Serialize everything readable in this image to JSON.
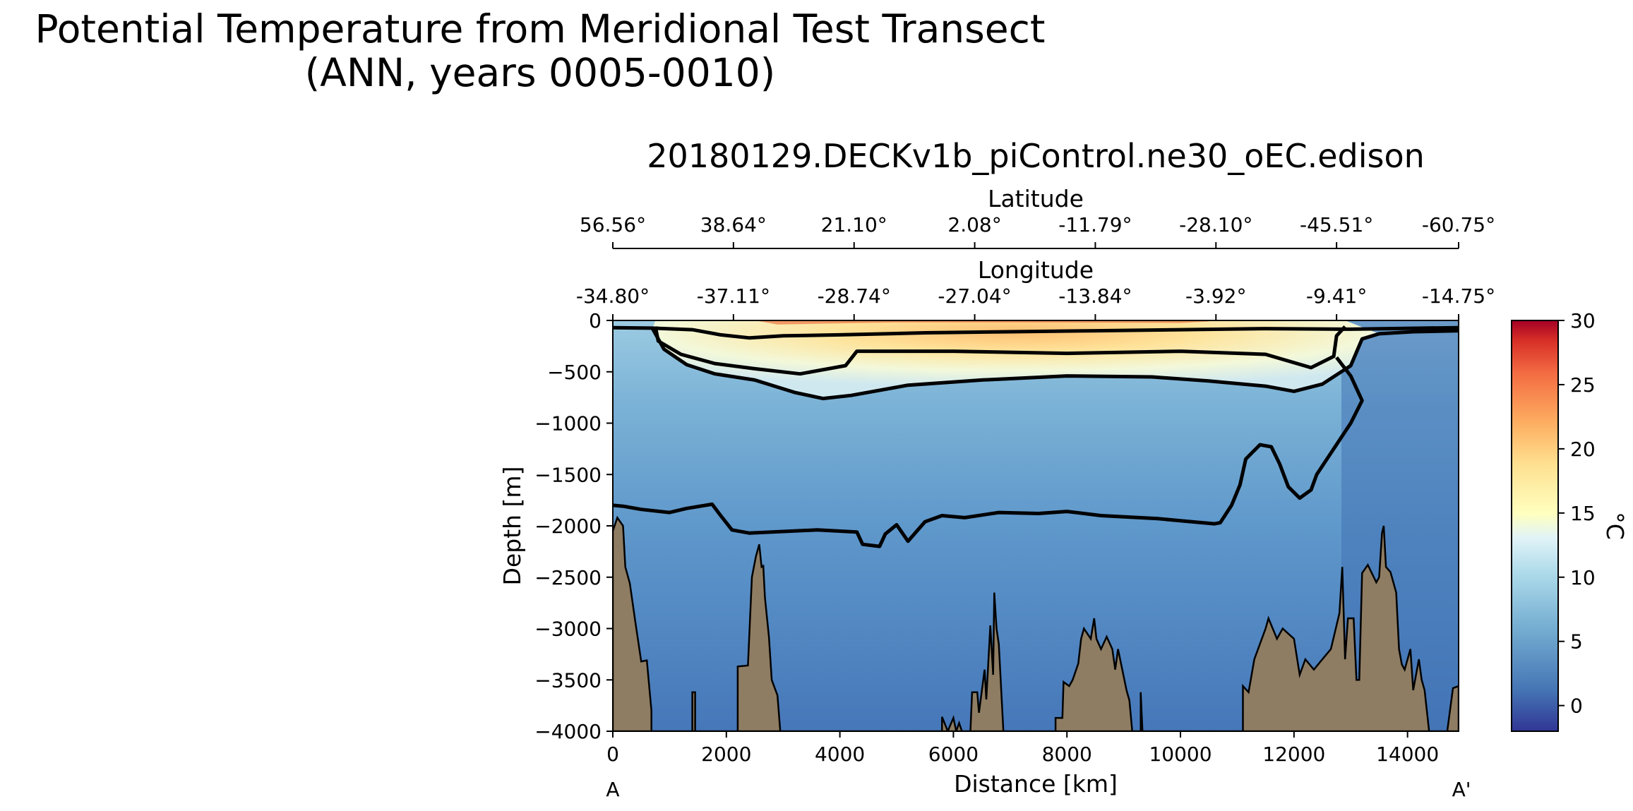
{
  "figure": {
    "suptitle_line1": "Potential Temperature from Meridional Test Transect",
    "suptitle_line2": "(ANN, years 0005-0010)",
    "plot_title": "20180129.DECKv1b_piControl.ne30_oEC.edison",
    "colors": {
      "deep": "#3f6eb0",
      "mid": "#7fb6d8",
      "light": "#e7f3f5",
      "warm": "#fddf8c",
      "hot": "#ef7148",
      "bathymetry": "#8e7d63",
      "contour": "#000000"
    }
  },
  "chart_data": {
    "type": "heatmap",
    "variable": "Potential Temperature",
    "xlabel": "Distance [km]",
    "ylabel": "Depth [m]",
    "xlim": [
      0,
      14900
    ],
    "ylim": [
      -4000,
      0
    ],
    "xticks": [
      0,
      2000,
      4000,
      6000,
      8000,
      10000,
      12000,
      14000
    ],
    "xtick_labels": [
      "0",
      "2000",
      "4000",
      "6000",
      "8000",
      "10000",
      "12000",
      "14000"
    ],
    "yticks": [
      0,
      -500,
      -1000,
      -1500,
      -2000,
      -2500,
      -3000,
      -3500,
      -4000
    ],
    "ytick_labels": [
      "0",
      "−500",
      "−1000",
      "−1500",
      "−2000",
      "−2500",
      "−3000",
      "−3500",
      "−4000"
    ],
    "section_start_label": "A",
    "section_end_label": "A'",
    "top_axes": [
      {
        "label": "Latitude",
        "tick_positions_km": [
          0,
          2125,
          4250,
          6375,
          8500,
          10625,
          12750,
          14900
        ],
        "tick_labels": [
          "56.56°",
          "38.64°",
          "21.10°",
          "2.08°",
          "-11.79°",
          "-28.10°",
          "-45.51°",
          "-60.75°"
        ]
      },
      {
        "label": "Longitude",
        "tick_positions_km": [
          0,
          2125,
          4250,
          6375,
          8500,
          10625,
          12750,
          14900
        ],
        "tick_labels": [
          "-34.80°",
          "-37.11°",
          "-28.74°",
          "-27.04°",
          "-13.84°",
          "-3.92°",
          "-9.41°",
          "-14.75°"
        ]
      }
    ],
    "colorbar": {
      "label": "°C",
      "vmin": -2,
      "vmax": 30,
      "ticks": [
        0,
        5,
        10,
        15,
        20,
        25,
        30
      ],
      "tick_labels": [
        "0",
        "5",
        "10",
        "15",
        "20",
        "25",
        "30"
      ]
    },
    "contour_lines": [
      {
        "name": "contour-near-surface",
        "points": [
          [
            0,
            -70
          ],
          [
            700,
            -75
          ],
          [
            1400,
            -90
          ],
          [
            1900,
            -140
          ],
          [
            2400,
            -170
          ],
          [
            3000,
            -150
          ],
          [
            4000,
            -140
          ],
          [
            5500,
            -120
          ],
          [
            7000,
            -110
          ],
          [
            8500,
            -100
          ],
          [
            10000,
            -90
          ],
          [
            11500,
            -80
          ],
          [
            13000,
            -85
          ],
          [
            14900,
            -70
          ]
        ]
      },
      {
        "name": "contour-thermocline-upper",
        "points": [
          [
            750,
            -60
          ],
          [
            800,
            -200
          ],
          [
            1200,
            -330
          ],
          [
            1800,
            -420
          ],
          [
            2500,
            -470
          ],
          [
            3300,
            -520
          ],
          [
            4100,
            -440
          ],
          [
            4300,
            -300
          ],
          [
            6000,
            -300
          ],
          [
            8000,
            -320
          ],
          [
            10000,
            -300
          ],
          [
            11500,
            -330
          ],
          [
            12300,
            -460
          ],
          [
            12700,
            -350
          ],
          [
            12750,
            -150
          ],
          [
            12900,
            -60
          ]
        ]
      },
      {
        "name": "contour-thermocline-lower",
        "points": [
          [
            700,
            -80
          ],
          [
            900,
            -280
          ],
          [
            1300,
            -430
          ],
          [
            1800,
            -520
          ],
          [
            2500,
            -580
          ],
          [
            3200,
            -700
          ],
          [
            3700,
            -760
          ],
          [
            4200,
            -730
          ],
          [
            5200,
            -630
          ],
          [
            6500,
            -580
          ],
          [
            8000,
            -540
          ],
          [
            9500,
            -550
          ],
          [
            10500,
            -590
          ],
          [
            11500,
            -640
          ],
          [
            12000,
            -690
          ],
          [
            12500,
            -620
          ],
          [
            13000,
            -440
          ],
          [
            13200,
            -180
          ],
          [
            13500,
            -130
          ],
          [
            14100,
            -110
          ],
          [
            14900,
            -100
          ]
        ]
      },
      {
        "name": "contour-intermediate",
        "points": [
          [
            12750,
            -360
          ],
          [
            13000,
            -540
          ],
          [
            13200,
            -780
          ],
          [
            13000,
            -1000
          ],
          [
            12700,
            -1250
          ],
          [
            12400,
            -1500
          ],
          [
            12300,
            -1650
          ],
          [
            12100,
            -1730
          ],
          [
            11900,
            -1620
          ],
          [
            11750,
            -1400
          ],
          [
            11600,
            -1230
          ],
          [
            11400,
            -1210
          ],
          [
            11150,
            -1350
          ],
          [
            11050,
            -1600
          ],
          [
            10900,
            -1800
          ],
          [
            10700,
            -1970
          ],
          [
            10600,
            -1980
          ],
          [
            10000,
            -1950
          ],
          [
            9600,
            -1930
          ],
          [
            8600,
            -1900
          ],
          [
            8000,
            -1860
          ],
          [
            7500,
            -1880
          ],
          [
            6800,
            -1870
          ],
          [
            6200,
            -1920
          ],
          [
            5800,
            -1900
          ],
          [
            5500,
            -1960
          ],
          [
            5200,
            -2150
          ],
          [
            5000,
            -1990
          ],
          [
            4800,
            -2080
          ],
          [
            4700,
            -2200
          ],
          [
            4400,
            -2180
          ],
          [
            4300,
            -2060
          ],
          [
            3600,
            -2040
          ],
          [
            2400,
            -2070
          ],
          [
            2100,
            -2040
          ],
          [
            1900,
            -1900
          ],
          [
            1750,
            -1790
          ],
          [
            1300,
            -1830
          ],
          [
            1000,
            -1870
          ],
          [
            500,
            -1840
          ],
          [
            200,
            -1810
          ],
          [
            0,
            -1800
          ]
        ]
      }
    ],
    "bathymetry": [
      [
        0,
        -2050
      ],
      [
        80,
        -1920
      ],
      [
        180,
        -2000
      ],
      [
        220,
        -2400
      ],
      [
        300,
        -2560
      ],
      [
        400,
        -2950
      ],
      [
        500,
        -3320
      ],
      [
        600,
        -3310
      ],
      [
        680,
        -3800
      ],
      [
        680,
        -4000
      ],
      [
        1400,
        -4000
      ],
      [
        1400,
        -3620
      ],
      [
        1450,
        -3620
      ],
      [
        1450,
        -4000
      ],
      [
        2200,
        -4000
      ],
      [
        2200,
        -3370
      ],
      [
        2380,
        -3360
      ],
      [
        2450,
        -2500
      ],
      [
        2520,
        -2300
      ],
      [
        2580,
        -2180
      ],
      [
        2620,
        -2400
      ],
      [
        2650,
        -2390
      ],
      [
        2680,
        -2700
      ],
      [
        2750,
        -3080
      ],
      [
        2800,
        -3500
      ],
      [
        2900,
        -3650
      ],
      [
        2950,
        -4000
      ],
      [
        5800,
        -4000
      ],
      [
        5800,
        -3860
      ],
      [
        5900,
        -4000
      ],
      [
        6000,
        -3870
      ],
      [
        6050,
        -4000
      ],
      [
        6100,
        -3920
      ],
      [
        6150,
        -4000
      ],
      [
        6300,
        -4000
      ],
      [
        6330,
        -3620
      ],
      [
        6420,
        -3620
      ],
      [
        6450,
        -3820
      ],
      [
        6550,
        -3400
      ],
      [
        6580,
        -3690
      ],
      [
        6650,
        -2970
      ],
      [
        6700,
        -3450
      ],
      [
        6720,
        -2650
      ],
      [
        6760,
        -3000
      ],
      [
        6800,
        -3150
      ],
      [
        6880,
        -4000
      ],
      [
        7800,
        -4000
      ],
      [
        7800,
        -3870
      ],
      [
        7920,
        -3870
      ],
      [
        7940,
        -3520
      ],
      [
        8040,
        -3560
      ],
      [
        8100,
        -3500
      ],
      [
        8200,
        -3340
      ],
      [
        8250,
        -3100
      ],
      [
        8300,
        -3000
      ],
      [
        8420,
        -3100
      ],
      [
        8480,
        -2900
      ],
      [
        8520,
        -3100
      ],
      [
        8600,
        -3200
      ],
      [
        8700,
        -3080
      ],
      [
        8800,
        -3200
      ],
      [
        8850,
        -3400
      ],
      [
        8900,
        -3200
      ],
      [
        9050,
        -3600
      ],
      [
        9100,
        -3700
      ],
      [
        9150,
        -4000
      ],
      [
        9300,
        -4000
      ],
      [
        9300,
        -3620
      ],
      [
        9330,
        -4000
      ],
      [
        11100,
        -4000
      ],
      [
        11100,
        -3560
      ],
      [
        11200,
        -3620
      ],
      [
        11300,
        -3300
      ],
      [
        11500,
        -3000
      ],
      [
        11550,
        -2900
      ],
      [
        11700,
        -3100
      ],
      [
        11800,
        -3000
      ],
      [
        11900,
        -3050
      ],
      [
        12000,
        -3100
      ],
      [
        12100,
        -3450
      ],
      [
        12200,
        -3300
      ],
      [
        12350,
        -3400
      ],
      [
        12500,
        -3300
      ],
      [
        12650,
        -3200
      ],
      [
        12800,
        -2850
      ],
      [
        12850,
        -2400
      ],
      [
        12900,
        -3300
      ],
      [
        12950,
        -2900
      ],
      [
        13050,
        -2900
      ],
      [
        13100,
        -3500
      ],
      [
        13150,
        -3500
      ],
      [
        13200,
        -2460
      ],
      [
        13300,
        -2380
      ],
      [
        13450,
        -2550
      ],
      [
        13500,
        -2500
      ],
      [
        13550,
        -2070
      ],
      [
        13580,
        -2000
      ],
      [
        13620,
        -2400
      ],
      [
        13700,
        -2450
      ],
      [
        13800,
        -2650
      ],
      [
        13850,
        -3200
      ],
      [
        13900,
        -3350
      ],
      [
        13950,
        -3400
      ],
      [
        14050,
        -3200
      ],
      [
        14100,
        -3600
      ],
      [
        14200,
        -3300
      ],
      [
        14250,
        -3500
      ],
      [
        14300,
        -3600
      ],
      [
        14380,
        -4000
      ],
      [
        14700,
        -4000
      ],
      [
        14800,
        -3580
      ],
      [
        14900,
        -3560
      ],
      [
        14900,
        -4000
      ],
      [
        0,
        -4000
      ]
    ]
  }
}
